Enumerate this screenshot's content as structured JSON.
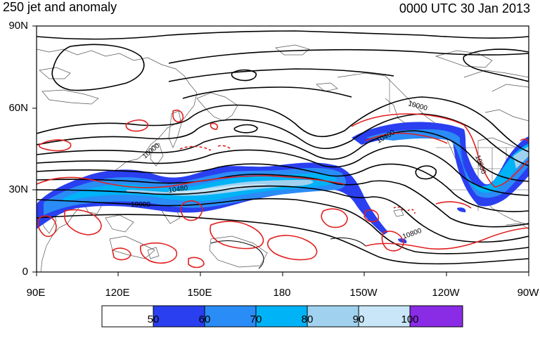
{
  "header": {
    "title": "250 jet and anomaly",
    "datetime": "0000 UTC 30 Jan 2013"
  },
  "map": {
    "lat_labels": [
      "90N",
      "60N",
      "30N",
      "0"
    ],
    "lon_labels": [
      "90E",
      "120E",
      "150E",
      "180",
      "150W",
      "120W",
      "90W"
    ],
    "contour_labels": [
      "10000",
      "10480",
      "10000",
      "10400",
      "10000",
      "10800",
      "10800",
      "10000"
    ]
  },
  "colorbar": {
    "labels": [
      "50",
      "60",
      "70",
      "80",
      "90",
      "100"
    ],
    "colors": [
      "#ffffff",
      "#2a3ff0",
      "#2a8cf6",
      "#00b2f6",
      "#a0d2f0",
      "#c8e6f8",
      "#8a2be6"
    ]
  },
  "colors": {
    "jet_dark": "#2a3ff0",
    "jet_mid": "#2a8cf6",
    "jet_light": "#00b2f6",
    "jet_pale": "#a0d2f0",
    "anomaly": "#e02020"
  }
}
